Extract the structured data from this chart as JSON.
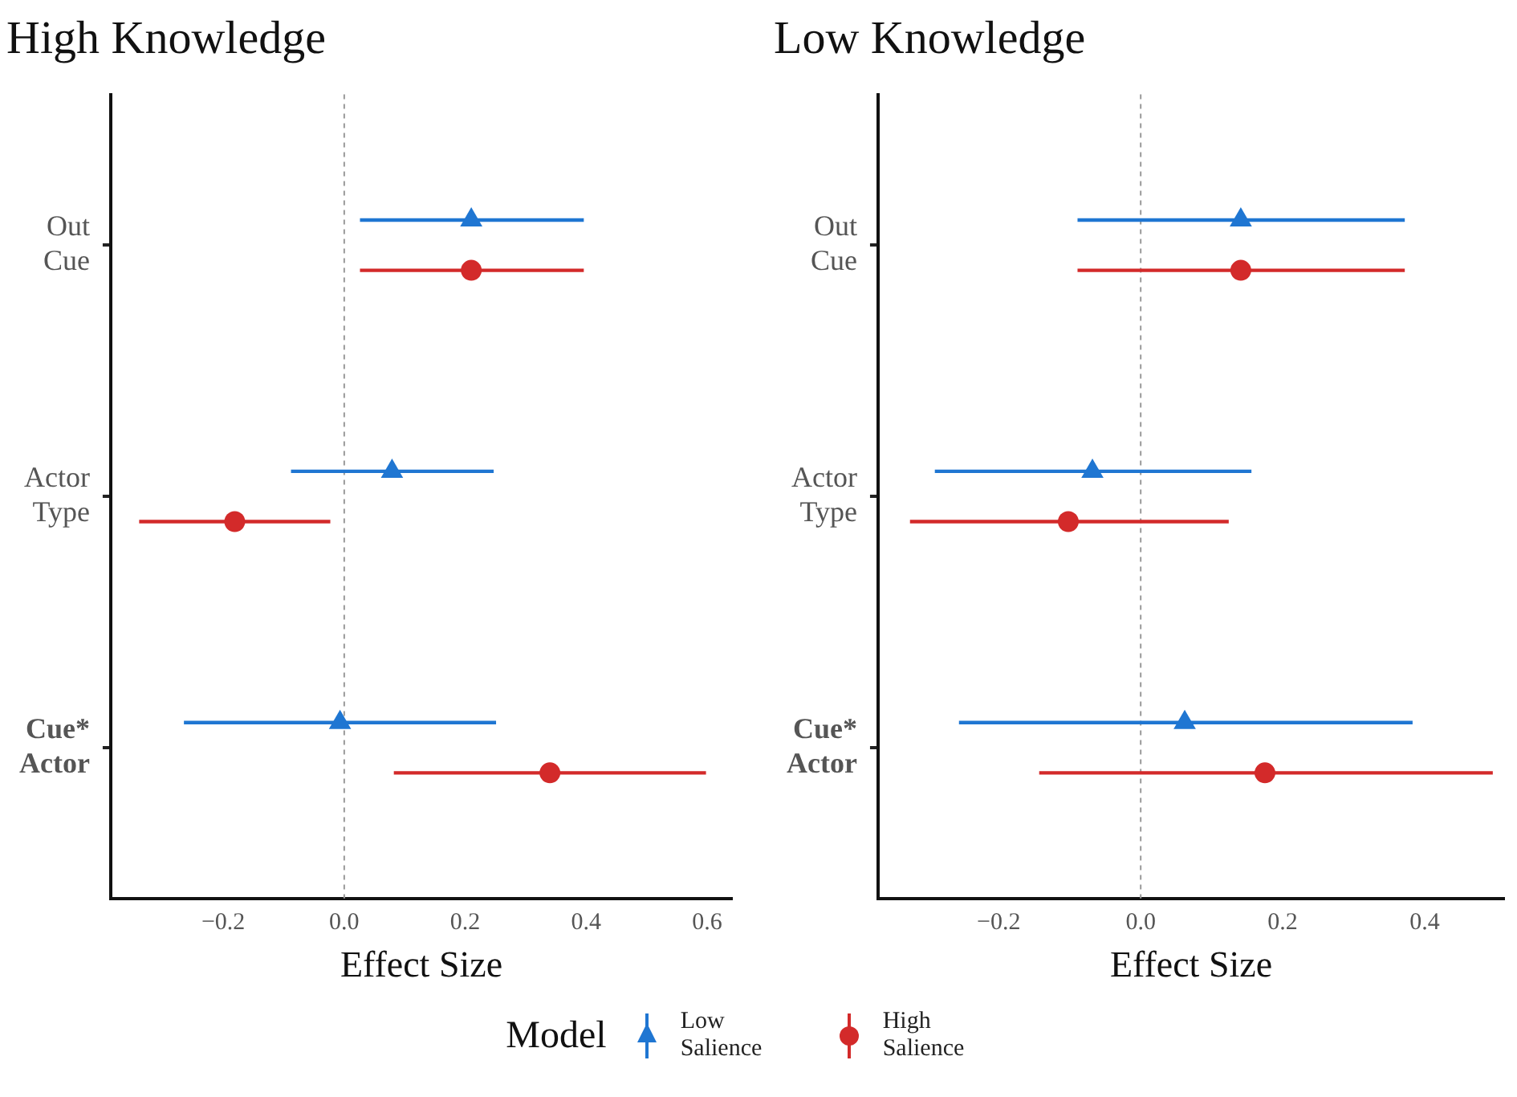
{
  "chart_data": [
    {
      "type": "scatter",
      "orientation": "horizontal",
      "title": "High Knowledge",
      "xlabel": "Effect Size",
      "categories": [
        "Out Cue",
        "Actor Type",
        "Cue* Actor"
      ],
      "series": [
        {
          "name": "Low Salience",
          "color": "#1f76d2",
          "marker": "triangle",
          "values": [
            0.21,
            0.079,
            -0.007
          ],
          "errors": [
            [
              0.026,
              0.396
            ],
            [
              -0.088,
              0.247
            ],
            [
              -0.265,
              0.251
            ]
          ]
        },
        {
          "name": "High Salience",
          "color": "#d32a2a",
          "marker": "circle",
          "values": [
            0.21,
            -0.181,
            0.34
          ],
          "errors": [
            [
              0.026,
              0.396
            ],
            [
              -0.339,
              -0.023
            ],
            [
              0.082,
              0.598
            ]
          ]
        }
      ],
      "xlim": [
        -0.386,
        0.641
      ],
      "xticks": [
        {
          "value": -0.2,
          "label": "−0.2"
        },
        {
          "value": 0,
          "label": "0.0"
        },
        {
          "value": 0.2,
          "label": "0.2"
        },
        {
          "value": 0.4,
          "label": "0.4"
        },
        {
          "value": 0.6,
          "label": "0.6"
        }
      ],
      "ref_lines": [
        {
          "axis": "x",
          "value": 0,
          "color": "#999999",
          "line_style": "dashed"
        }
      ],
      "legend": "bottom",
      "legend_title": "Model"
    },
    {
      "type": "scatter",
      "orientation": "horizontal",
      "title": "Low Knowledge",
      "xlabel": "Effect Size",
      "categories": [
        "Out Cue",
        "Actor Type",
        "Cue* Actor"
      ],
      "series": [
        {
          "color": "#1f76d2",
          "marker": "triangle",
          "values": [
            0.141,
            -0.068,
            0.062
          ],
          "errors": [
            [
              -0.089,
              0.372
            ],
            [
              -0.29,
              0.156
            ],
            [
              -0.256,
              0.383
            ]
          ]
        },
        {
          "color": "#d32a2a",
          "marker": "circle",
          "values": [
            0.141,
            -0.102,
            0.175
          ],
          "errors": [
            [
              -0.089,
              0.372
            ],
            [
              -0.325,
              0.124
            ],
            [
              -0.143,
              0.496
            ]
          ]
        }
      ],
      "xlim": [
        -0.37,
        0.512
      ],
      "xticks": [
        {
          "value": -0.2,
          "label": "−0.2"
        },
        {
          "value": 0,
          "label": "0.0"
        },
        {
          "value": 0.2,
          "label": "0.2"
        },
        {
          "value": 0.4,
          "label": "0.4"
        }
      ],
      "ref_lines": [
        {
          "axis": "x",
          "value": 0,
          "color": "#999999",
          "line_style": "dashed"
        }
      ]
    }
  ]
}
